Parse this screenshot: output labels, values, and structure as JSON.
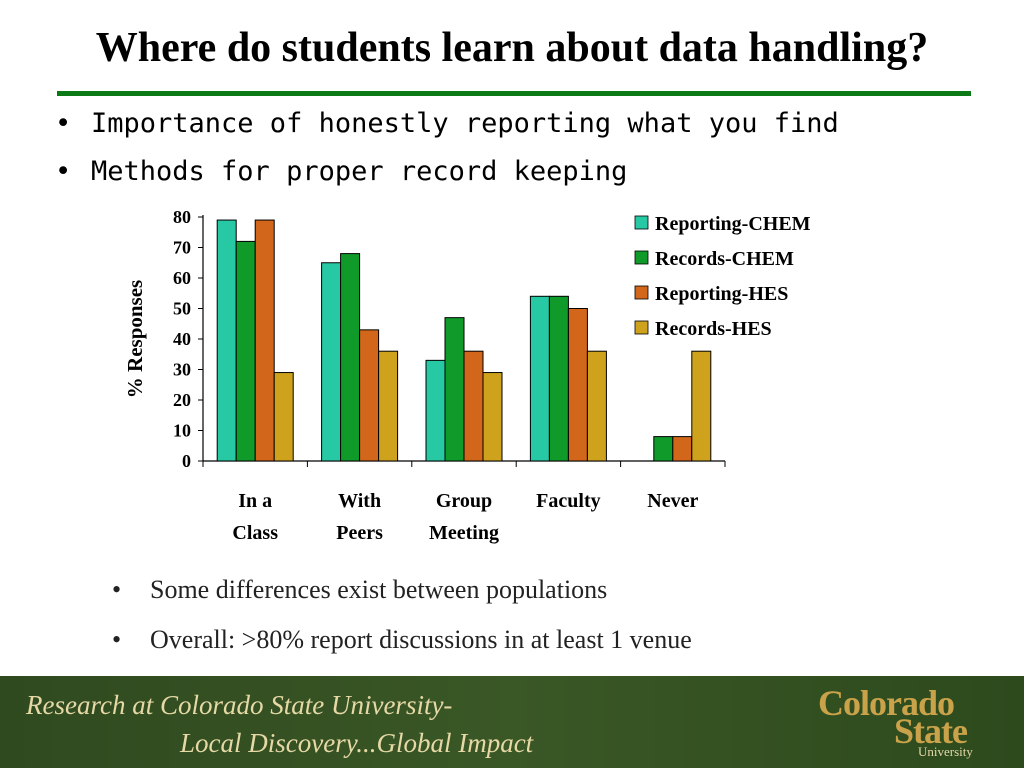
{
  "slide": {
    "title": "Where do students learn about data handling?",
    "top_bullets": [
      "Importance of honestly reporting what you find",
      "Methods for proper record keeping"
    ],
    "bottom_bullets": [
      "Some differences exist between populations",
      "Overall:  >80% report discussions in at least 1 venue"
    ],
    "bullet_glyph": "•"
  },
  "footer": {
    "line1": "Research at Colorado State University-",
    "line2": "Local Discovery...Global Impact",
    "logo": {
      "line1": "Colorado",
      "line2": "State",
      "line3": "University"
    }
  },
  "colors": {
    "title_rule": "#0b7a16",
    "footer_bg": "#344f22",
    "footer_text": "#e6d9a6",
    "logo_gold": "#c9a24a"
  },
  "chart_data": {
    "type": "bar",
    "ylabel": "% Responses",
    "xlabel": "",
    "ylim": [
      0,
      80
    ],
    "yticks": [
      0,
      10,
      20,
      30,
      40,
      50,
      60,
      70,
      80
    ],
    "grid": false,
    "legend_position": "top-right",
    "categories": [
      [
        "In a",
        "Class"
      ],
      [
        "With",
        "Peers"
      ],
      [
        "Group",
        "Meeting"
      ],
      [
        "Faculty"
      ],
      [
        "Never"
      ]
    ],
    "series": [
      {
        "name": "Reporting-CHEM",
        "color": "#27c8a4",
        "values": [
          79,
          65,
          33,
          54,
          0
        ]
      },
      {
        "name": "Records-CHEM",
        "color": "#109a2a",
        "values": [
          72,
          68,
          47,
          54,
          8
        ]
      },
      {
        "name": "Reporting-HES",
        "color": "#d2661a",
        "values": [
          79,
          43,
          36,
          50,
          8
        ]
      },
      {
        "name": "Records-HES",
        "color": "#cfa21e",
        "values": [
          29,
          36,
          29,
          36,
          36
        ]
      }
    ]
  }
}
